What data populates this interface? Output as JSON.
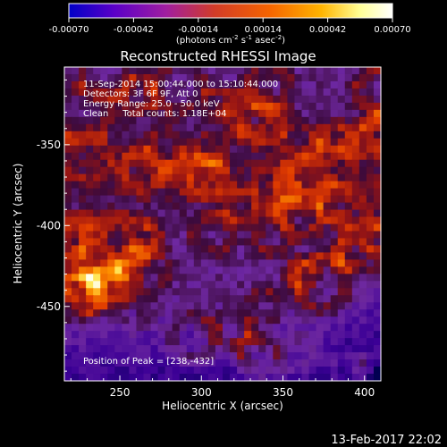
{
  "chart_data": {
    "type": "heatmap",
    "title": "Reconstructed RHESSI Image",
    "colorbar": {
      "ticks": [
        "-0.00070",
        "-0.00042",
        "-0.00014",
        "0.00014",
        "0.00042",
        "0.00070"
      ],
      "range": [
        -0.0007,
        0.0007
      ],
      "unit_prefix": "(photons cm",
      "unit_sup1": "-2",
      "unit_mid": " s",
      "unit_sup2": "-1",
      "unit_mid2": " asec",
      "unit_sup3": "-2",
      "unit_suffix": ")",
      "colors": [
        "#0000c8",
        "#5a00c8",
        "#a01ea0",
        "#d23c28",
        "#f56400",
        "#ffb400",
        "#ffff96",
        "#ffffff"
      ]
    },
    "info": [
      "11-Sep-2014 15:00:44.000 to 15:10:44.000",
      "Detectors: 3F 6F 9F, Att 0",
      "Energy Range: 25.0 - 50.0 keV",
      "Clean     Total counts: 1.18E+04"
    ],
    "peak_label": "Position of Peak = [238,-432]",
    "peak": [
      238,
      -432
    ],
    "xlabel": "Heliocentric X (arcsec)",
    "ylabel": "Heliocentric Y (arcsec)",
    "xlim": [
      216,
      410
    ],
    "ylim": [
      -496,
      -302
    ],
    "xticks": [
      250,
      300,
      350,
      400
    ],
    "yticks": [
      -350,
      -400,
      -450
    ],
    "grid": false,
    "legend": "colorbar-top"
  },
  "footer": {
    "timestamp": "13-Feb-2017 22:02"
  }
}
